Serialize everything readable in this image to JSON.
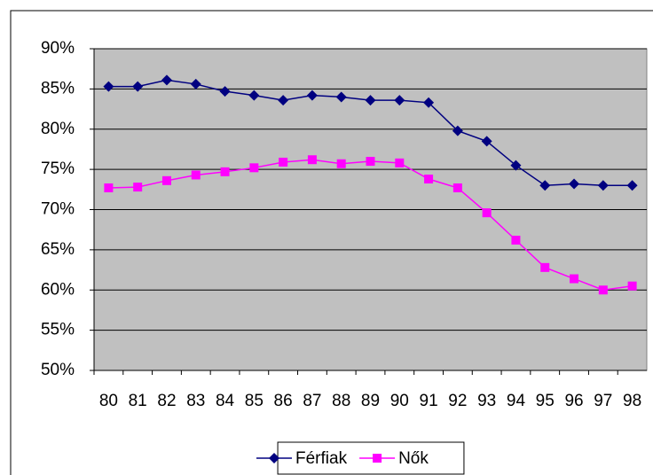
{
  "chart_data": {
    "type": "line",
    "categories": [
      "80",
      "81",
      "82",
      "83",
      "84",
      "85",
      "86",
      "87",
      "88",
      "89",
      "90",
      "91",
      "92",
      "93",
      "94",
      "95",
      "96",
      "97",
      "98"
    ],
    "series": [
      {
        "name": "Férfiak",
        "color": "#000080",
        "marker": "diamond",
        "values": [
          85.3,
          85.3,
          86.1,
          85.6,
          84.7,
          84.2,
          83.6,
          84.2,
          84.0,
          83.6,
          83.6,
          83.3,
          79.8,
          78.5,
          75.5,
          73.0,
          73.2,
          73.0,
          73.0
        ]
      },
      {
        "name": "Nők",
        "color": "#ff00ff",
        "marker": "square",
        "values": [
          72.7,
          72.8,
          73.6,
          74.3,
          74.7,
          75.2,
          75.9,
          76.2,
          75.7,
          76.0,
          75.8,
          73.8,
          72.7,
          69.6,
          66.2,
          62.8,
          61.4,
          60.0,
          60.5
        ]
      }
    ],
    "ylim": [
      50,
      90
    ],
    "yticks": [
      {
        "value": 50,
        "label": "50%"
      },
      {
        "value": 55,
        "label": "55%"
      },
      {
        "value": 60,
        "label": "60%"
      },
      {
        "value": 65,
        "label": "65%"
      },
      {
        "value": 70,
        "label": "70%"
      },
      {
        "value": 75,
        "label": "75%"
      },
      {
        "value": 80,
        "label": "80%"
      },
      {
        "value": 85,
        "label": "85%"
      },
      {
        "value": 90,
        "label": "90%"
      }
    ],
    "grid": true,
    "legend": "bottom",
    "background": "#c0c0c0"
  }
}
